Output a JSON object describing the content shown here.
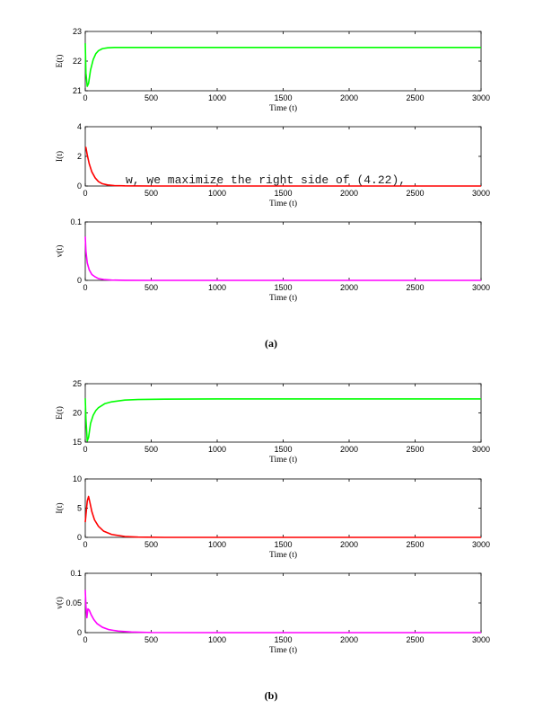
{
  "overlay_text": "w, we maximize the right side of (4.22),",
  "chart_data": [
    {
      "type": "line",
      "panel": "a",
      "ylabel": "E(t)",
      "xlabel": "Time (t)",
      "color": "#00ff00",
      "xlim": [
        0,
        3000
      ],
      "ylim": [
        21,
        23
      ],
      "xticks": [
        0,
        500,
        1000,
        1500,
        2000,
        2500,
        3000
      ],
      "yticks": [
        21,
        22,
        23
      ],
      "ytick_labels": [
        "21",
        "22",
        "23"
      ],
      "series": [
        {
          "name": "E(t)",
          "x": [
            0,
            5,
            15,
            25,
            40,
            60,
            80,
            100,
            130,
            170,
            220,
            300,
            500,
            1000,
            2000,
            3000
          ],
          "y": [
            22.6,
            21.6,
            21.15,
            21.25,
            21.7,
            22.05,
            22.25,
            22.35,
            22.42,
            22.45,
            22.46,
            22.46,
            22.46,
            22.46,
            22.46,
            22.46
          ]
        }
      ]
    },
    {
      "type": "line",
      "panel": "a",
      "ylabel": "I(t)",
      "xlabel": "Time (t)",
      "color": "#ff0000",
      "xlim": [
        0,
        3000
      ],
      "ylim": [
        0,
        4
      ],
      "xticks": [
        0,
        500,
        1000,
        1500,
        2000,
        2500,
        3000
      ],
      "yticks": [
        0,
        2,
        4
      ],
      "ytick_labels": [
        "0",
        "2",
        "4"
      ],
      "series": [
        {
          "name": "I(t)",
          "x": [
            0,
            5,
            15,
            30,
            50,
            75,
            100,
            130,
            170,
            220,
            300,
            500,
            1000,
            2000,
            3000
          ],
          "y": [
            2.6,
            2.6,
            2.1,
            1.5,
            0.95,
            0.55,
            0.3,
            0.15,
            0.07,
            0.03,
            0.01,
            0,
            0,
            0,
            0
          ]
        }
      ]
    },
    {
      "type": "line",
      "panel": "a",
      "ylabel": "v(t)",
      "xlabel": "Time (t)",
      "color": "#ff00ff",
      "xlim": [
        0,
        3000
      ],
      "ylim": [
        0,
        0.1
      ],
      "xticks": [
        0,
        500,
        1000,
        1500,
        2000,
        2500,
        3000
      ],
      "yticks": [
        0,
        0.1
      ],
      "ytick_labels": [
        "0",
        "0.1"
      ],
      "series": [
        {
          "name": "v(t)",
          "x": [
            0,
            5,
            15,
            30,
            50,
            75,
            100,
            140,
            200,
            300,
            500,
            1000,
            2000,
            3000
          ],
          "y": [
            0.075,
            0.05,
            0.03,
            0.018,
            0.01,
            0.006,
            0.003,
            0.0015,
            0.0005,
            0.0001,
            0,
            0,
            0,
            0
          ]
        }
      ]
    },
    {
      "type": "line",
      "panel": "b",
      "ylabel": "E(t)",
      "xlabel": "Time (t)",
      "color": "#00ff00",
      "xlim": [
        0,
        3000
      ],
      "ylim": [
        15,
        25
      ],
      "xticks": [
        0,
        500,
        1000,
        1500,
        2000,
        2500,
        3000
      ],
      "yticks": [
        15,
        20,
        25
      ],
      "ytick_labels": [
        "15",
        "20",
        "25"
      ],
      "series": [
        {
          "name": "E(t)",
          "x": [
            0,
            5,
            15,
            25,
            40,
            60,
            80,
            100,
            150,
            200,
            300,
            400,
            600,
            1000,
            2000,
            3000
          ],
          "y": [
            22.5,
            19,
            15.2,
            15.8,
            18.2,
            19.6,
            20.4,
            20.9,
            21.6,
            21.9,
            22.2,
            22.3,
            22.35,
            22.4,
            22.4,
            22.4
          ]
        }
      ]
    },
    {
      "type": "line",
      "panel": "b",
      "ylabel": "I(t)",
      "xlabel": "Time (t)",
      "color": "#ff0000",
      "xlim": [
        0,
        3000
      ],
      "ylim": [
        0,
        10
      ],
      "xticks": [
        0,
        500,
        1000,
        1500,
        2000,
        2500,
        3000
      ],
      "yticks": [
        0,
        5,
        10
      ],
      "ytick_labels": [
        "0",
        "5",
        "10"
      ],
      "series": [
        {
          "name": "I(t)",
          "x": [
            0,
            5,
            15,
            25,
            35,
            50,
            70,
            100,
            140,
            200,
            300,
            400,
            600,
            1000,
            2000,
            3000
          ],
          "y": [
            2.6,
            3.8,
            6.2,
            7.0,
            6.0,
            4.4,
            3.0,
            1.9,
            1.05,
            0.5,
            0.15,
            0.05,
            0,
            0,
            0,
            0
          ]
        }
      ]
    },
    {
      "type": "line",
      "panel": "b",
      "ylabel": "v(t)",
      "xlabel": "Time (t)",
      "color": "#ff00ff",
      "xlim": [
        0,
        3000
      ],
      "ylim": [
        0,
        0.1
      ],
      "xticks": [
        0,
        500,
        1000,
        1500,
        2000,
        2500,
        3000
      ],
      "yticks": [
        0,
        0.05,
        0.1
      ],
      "ytick_labels": [
        "0",
        "0.05",
        "0.1"
      ],
      "series": [
        {
          "name": "v(t)",
          "x": [
            0,
            5,
            12,
            20,
            30,
            45,
            65,
            90,
            130,
            180,
            250,
            350,
            500,
            1000,
            2000,
            3000
          ],
          "y": [
            0.072,
            0.045,
            0.025,
            0.04,
            0.038,
            0.03,
            0.022,
            0.015,
            0.009,
            0.005,
            0.0025,
            0.001,
            0.0002,
            0,
            0,
            0
          ]
        }
      ]
    }
  ],
  "captions": [
    "(a)",
    "(b)"
  ]
}
